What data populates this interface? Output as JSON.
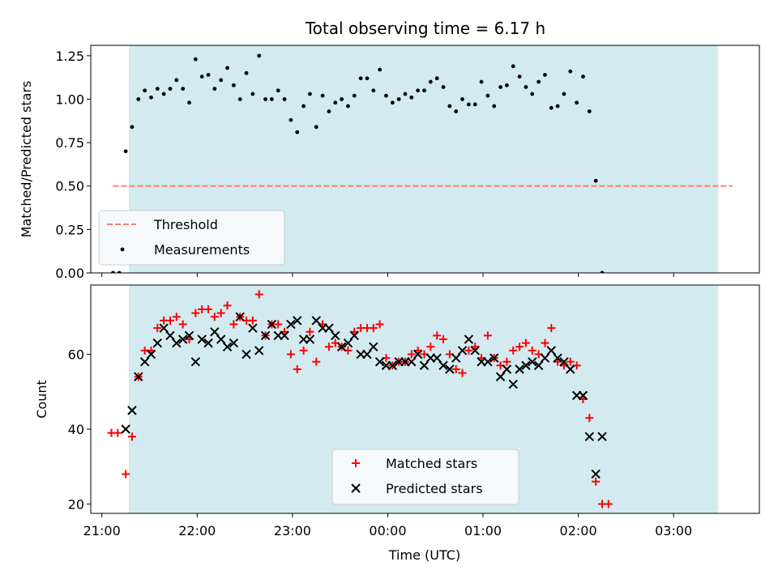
{
  "title": "Total observing time = 6.17 h",
  "colors": {
    "shade": "#d3eaf0",
    "threshold": "#ff7b7b",
    "measurement": "#000000",
    "matched": "#ff0000",
    "predicted": "#000000",
    "legend_bg": "#f5f9fb"
  },
  "chart_data": [
    {
      "type": "scatter",
      "ylabel": "Matched/Predicted stars",
      "xlim": [
        "20:53",
        "03:54"
      ],
      "ylim": [
        0,
        1.31
      ],
      "y_ticks": [
        "0.00",
        "0.25",
        "0.50",
        "0.75",
        "1.00",
        "1.25"
      ],
      "shaded_interval": [
        "21:17",
        "03:28"
      ],
      "threshold": {
        "name": "Threshold",
        "value": 0.5,
        "x_range": [
          "21:07",
          "03:37"
        ]
      },
      "legend": {
        "position": "lower left",
        "entries": [
          "Threshold",
          "Measurements"
        ]
      },
      "series": [
        {
          "name": "Measurements",
          "points": [
            [
              "21:07",
              0.0
            ],
            [
              "21:11",
              0.0
            ],
            [
              "21:15",
              0.7
            ],
            [
              "21:19",
              0.84
            ],
            [
              "21:23",
              1.0
            ],
            [
              "21:27",
              1.05
            ],
            [
              "21:31",
              1.01
            ],
            [
              "21:35",
              1.06
            ],
            [
              "21:39",
              1.03
            ],
            [
              "21:43",
              1.06
            ],
            [
              "21:47",
              1.11
            ],
            [
              "21:51",
              1.06
            ],
            [
              "21:55",
              0.98
            ],
            [
              "21:59",
              1.23
            ],
            [
              "22:03",
              1.13
            ],
            [
              "22:07",
              1.14
            ],
            [
              "22:11",
              1.06
            ],
            [
              "22:15",
              1.11
            ],
            [
              "22:19",
              1.18
            ],
            [
              "22:23",
              1.08
            ],
            [
              "22:27",
              1.0
            ],
            [
              "22:31",
              1.15
            ],
            [
              "22:35",
              1.03
            ],
            [
              "22:39",
              1.25
            ],
            [
              "22:43",
              1.0
            ],
            [
              "22:47",
              1.0
            ],
            [
              "22:51",
              1.05
            ],
            [
              "22:55",
              1.0
            ],
            [
              "22:59",
              0.88
            ],
            [
              "23:03",
              0.81
            ],
            [
              "23:07",
              0.96
            ],
            [
              "23:11",
              1.03
            ],
            [
              "23:15",
              0.84
            ],
            [
              "23:19",
              1.02
            ],
            [
              "23:23",
              0.93
            ],
            [
              "23:27",
              0.98
            ],
            [
              "23:31",
              1.0
            ],
            [
              "23:35",
              0.96
            ],
            [
              "23:39",
              1.02
            ],
            [
              "23:43",
              1.12
            ],
            [
              "23:47",
              1.12
            ],
            [
              "23:51",
              1.05
            ],
            [
              "23:55",
              1.17
            ],
            [
              "23:59",
              1.02
            ],
            [
              "00:03",
              0.98
            ],
            [
              "00:07",
              1.0
            ],
            [
              "00:11",
              1.03
            ],
            [
              "00:15",
              1.01
            ],
            [
              "00:19",
              1.05
            ],
            [
              "00:23",
              1.05
            ],
            [
              "00:27",
              1.1
            ],
            [
              "00:31",
              1.12
            ],
            [
              "00:35",
              1.07
            ],
            [
              "00:39",
              0.96
            ],
            [
              "00:43",
              0.93
            ],
            [
              "00:47",
              1.0
            ],
            [
              "00:51",
              0.97
            ],
            [
              "00:55",
              0.97
            ],
            [
              "00:59",
              1.1
            ],
            [
              "01:03",
              1.02
            ],
            [
              "01:07",
              0.96
            ],
            [
              "01:11",
              1.07
            ],
            [
              "01:15",
              1.08
            ],
            [
              "01:19",
              1.19
            ],
            [
              "01:23",
              1.13
            ],
            [
              "01:27",
              1.07
            ],
            [
              "01:31",
              1.03
            ],
            [
              "01:35",
              1.1
            ],
            [
              "01:39",
              1.14
            ],
            [
              "01:43",
              0.95
            ],
            [
              "01:47",
              0.96
            ],
            [
              "01:51",
              1.03
            ],
            [
              "01:55",
              1.16
            ],
            [
              "01:59",
              0.98
            ],
            [
              "02:03",
              1.13
            ],
            [
              "02:07",
              0.93
            ],
            [
              "02:11",
              0.53
            ],
            [
              "02:15",
              0.0
            ]
          ]
        }
      ]
    },
    {
      "type": "scatter",
      "xlabel": "Time (UTC)",
      "ylabel": "Count",
      "xlim": [
        "20:53",
        "03:54"
      ],
      "ylim": [
        17.5,
        78.5
      ],
      "y_ticks": [
        "20",
        "40",
        "60"
      ],
      "x_ticks": [
        "21:00",
        "22:00",
        "23:00",
        "00:00",
        "01:00",
        "02:00",
        "03:00"
      ],
      "shaded_interval": [
        "21:17",
        "03:28"
      ],
      "legend": {
        "position": "lower center",
        "entries": [
          "Matched stars",
          "Predicted stars"
        ]
      },
      "series": [
        {
          "name": "Matched stars",
          "points": [
            [
              "21:06",
              39
            ],
            [
              "21:10",
              39
            ],
            [
              "21:15",
              28
            ],
            [
              "21:19",
              38
            ],
            [
              "21:23",
              54
            ],
            [
              "21:27",
              61
            ],
            [
              "21:31",
              61
            ],
            [
              "21:35",
              67
            ],
            [
              "21:39",
              69
            ],
            [
              "21:43",
              69
            ],
            [
              "21:47",
              70
            ],
            [
              "21:51",
              68
            ],
            [
              "21:55",
              64
            ],
            [
              "21:59",
              71
            ],
            [
              "22:03",
              72
            ],
            [
              "22:07",
              72
            ],
            [
              "22:11",
              70
            ],
            [
              "22:15",
              71
            ],
            [
              "22:19",
              73
            ],
            [
              "22:23",
              68
            ],
            [
              "22:27",
              70
            ],
            [
              "22:31",
              69
            ],
            [
              "22:35",
              69
            ],
            [
              "22:39",
              76
            ],
            [
              "22:43",
              65
            ],
            [
              "22:47",
              68
            ],
            [
              "22:51",
              68
            ],
            [
              "22:55",
              66
            ],
            [
              "22:59",
              60
            ],
            [
              "23:03",
              56
            ],
            [
              "23:07",
              61
            ],
            [
              "23:11",
              66
            ],
            [
              "23:15",
              58
            ],
            [
              "23:19",
              68
            ],
            [
              "23:23",
              62
            ],
            [
              "23:27",
              63
            ],
            [
              "23:31",
              62
            ],
            [
              "23:35",
              61
            ],
            [
              "23:39",
              66
            ],
            [
              "23:43",
              67
            ],
            [
              "23:47",
              67
            ],
            [
              "23:51",
              67
            ],
            [
              "23:55",
              68
            ],
            [
              "23:59",
              59
            ],
            [
              "00:03",
              57
            ],
            [
              "00:07",
              58
            ],
            [
              "00:11",
              58
            ],
            [
              "00:15",
              60
            ],
            [
              "00:19",
              61
            ],
            [
              "00:23",
              60
            ],
            [
              "00:27",
              62
            ],
            [
              "00:31",
              65
            ],
            [
              "00:35",
              64
            ],
            [
              "00:39",
              60
            ],
            [
              "00:43",
              56
            ],
            [
              "00:47",
              55
            ],
            [
              "00:51",
              61
            ],
            [
              "00:55",
              62
            ],
            [
              "00:59",
              59
            ],
            [
              "01:03",
              65
            ],
            [
              "01:07",
              59
            ],
            [
              "01:11",
              57
            ],
            [
              "01:15",
              58
            ],
            [
              "01:19",
              61
            ],
            [
              "01:23",
              62
            ],
            [
              "01:27",
              63
            ],
            [
              "01:31",
              61
            ],
            [
              "01:35",
              60
            ],
            [
              "01:39",
              63
            ],
            [
              "01:43",
              67
            ],
            [
              "01:47",
              58
            ],
            [
              "01:51",
              57
            ],
            [
              "01:55",
              58
            ],
            [
              "01:59",
              57
            ],
            [
              "02:03",
              48
            ],
            [
              "02:07",
              43
            ],
            [
              "02:11",
              26
            ],
            [
              "02:15",
              20
            ],
            [
              "02:19",
              20
            ]
          ]
        },
        {
          "name": "Predicted stars",
          "points": [
            [
              "21:15",
              40
            ],
            [
              "21:19",
              45
            ],
            [
              "21:23",
              54
            ],
            [
              "21:27",
              58
            ],
            [
              "21:31",
              60
            ],
            [
              "21:35",
              63
            ],
            [
              "21:39",
              67
            ],
            [
              "21:43",
              65
            ],
            [
              "21:47",
              63
            ],
            [
              "21:51",
              64
            ],
            [
              "21:55",
              65
            ],
            [
              "21:59",
              58
            ],
            [
              "22:03",
              64
            ],
            [
              "22:07",
              63
            ],
            [
              "22:11",
              66
            ],
            [
              "22:15",
              64
            ],
            [
              "22:19",
              62
            ],
            [
              "22:23",
              63
            ],
            [
              "22:27",
              70
            ],
            [
              "22:31",
              60
            ],
            [
              "22:35",
              67
            ],
            [
              "22:39",
              61
            ],
            [
              "22:43",
              65
            ],
            [
              "22:47",
              68
            ],
            [
              "22:51",
              65
            ],
            [
              "22:55",
              65
            ],
            [
              "22:59",
              68
            ],
            [
              "23:03",
              69
            ],
            [
              "23:07",
              64
            ],
            [
              "23:11",
              64
            ],
            [
              "23:15",
              69
            ],
            [
              "23:19",
              67
            ],
            [
              "23:23",
              67
            ],
            [
              "23:27",
              65
            ],
            [
              "23:31",
              62
            ],
            [
              "23:35",
              63
            ],
            [
              "23:39",
              65
            ],
            [
              "23:43",
              60
            ],
            [
              "23:47",
              60
            ],
            [
              "23:51",
              62
            ],
            [
              "23:55",
              58
            ],
            [
              "23:59",
              57
            ],
            [
              "00:03",
              57
            ],
            [
              "00:07",
              58
            ],
            [
              "00:11",
              58
            ],
            [
              "00:15",
              58
            ],
            [
              "00:19",
              60
            ],
            [
              "00:23",
              57
            ],
            [
              "00:27",
              59
            ],
            [
              "00:31",
              59
            ],
            [
              "00:35",
              57
            ],
            [
              "00:39",
              56
            ],
            [
              "00:43",
              59
            ],
            [
              "00:47",
              61
            ],
            [
              "00:51",
              64
            ],
            [
              "00:55",
              61
            ],
            [
              "00:59",
              58
            ],
            [
              "01:03",
              58
            ],
            [
              "01:07",
              59
            ],
            [
              "01:11",
              54
            ],
            [
              "01:15",
              56
            ],
            [
              "01:19",
              52
            ],
            [
              "01:23",
              56
            ],
            [
              "01:27",
              57
            ],
            [
              "01:31",
              58
            ],
            [
              "01:35",
              57
            ],
            [
              "01:39",
              59
            ],
            [
              "01:43",
              61
            ],
            [
              "01:47",
              59
            ],
            [
              "01:51",
              58
            ],
            [
              "01:55",
              56
            ],
            [
              "01:59",
              49
            ],
            [
              "02:03",
              49
            ],
            [
              "02:07",
              38
            ],
            [
              "02:11",
              28
            ],
            [
              "02:15",
              38
            ]
          ]
        }
      ]
    }
  ]
}
